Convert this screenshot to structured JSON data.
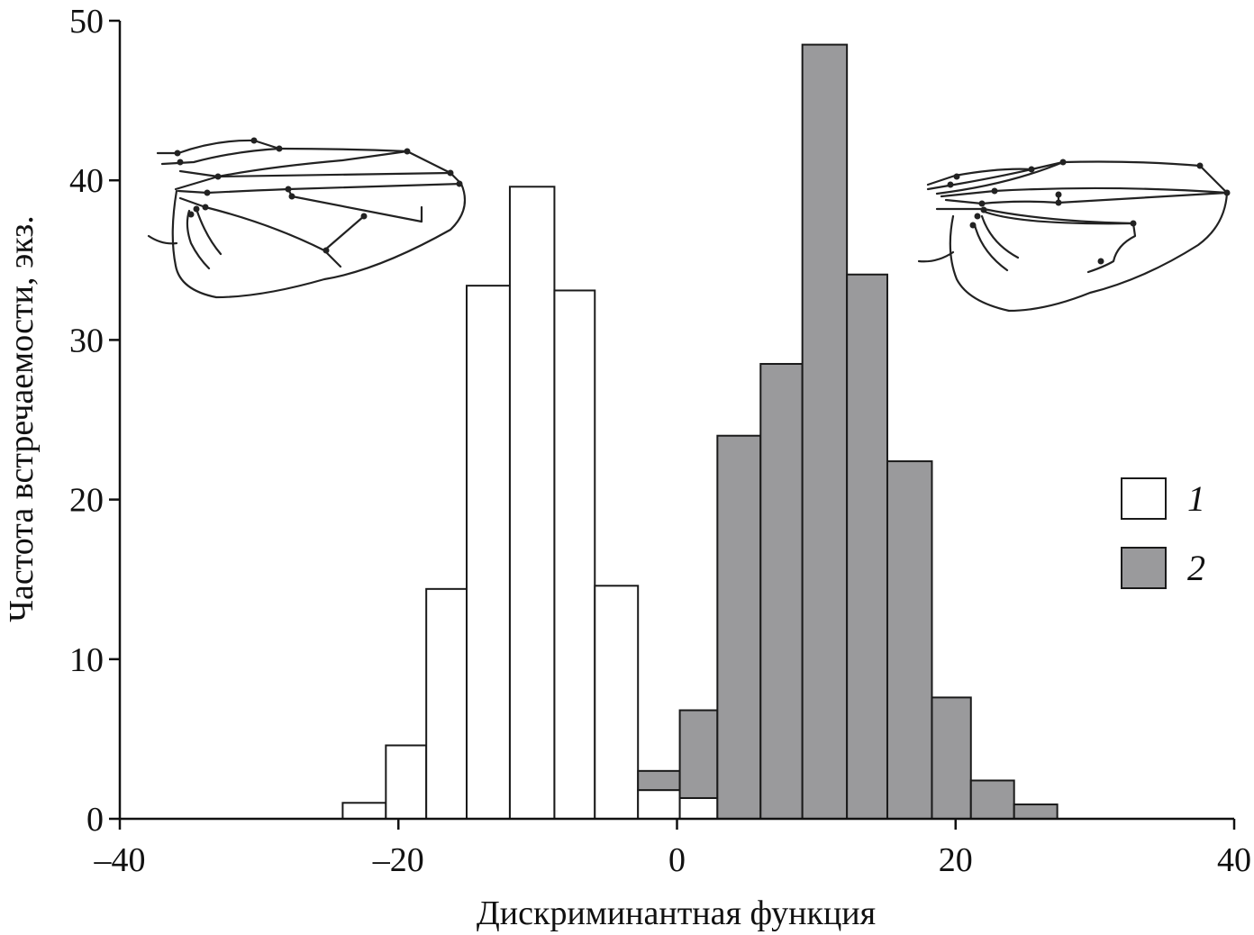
{
  "chart_data": {
    "type": "bar",
    "title": "",
    "xlabel": "Дискриминантная функция",
    "ylabel": "Частота встречаемости, экз.",
    "xlim": [
      -40,
      40
    ],
    "ylim": [
      0,
      50
    ],
    "x_ticks": [
      -40,
      -20,
      0,
      20,
      40
    ],
    "x_tick_labels": [
      "–40",
      "–20",
      "0",
      "20",
      "40"
    ],
    "y_ticks": [
      0,
      10,
      20,
      30,
      40,
      50
    ],
    "y_tick_labels": [
      "0",
      "10",
      "20",
      "30",
      "40",
      "50"
    ],
    "grid": false,
    "legend_position": "right",
    "series": [
      {
        "name": "1",
        "color": "#ffffff",
        "bins": [
          {
            "x0": -24.0,
            "x1": -20.9,
            "value": 1
          },
          {
            "x0": -20.9,
            "x1": -18.0,
            "value": 4.6
          },
          {
            "x0": -18.0,
            "x1": -15.1,
            "value": 14.4
          },
          {
            "x0": -15.1,
            "x1": -12.0,
            "value": 33.4
          },
          {
            "x0": -12.0,
            "x1": -8.8,
            "value": 39.6
          },
          {
            "x0": -8.8,
            "x1": -5.9,
            "value": 33.1
          },
          {
            "x0": -5.9,
            "x1": -2.8,
            "value": 14.6
          },
          {
            "x0": -2.8,
            "x1": 0.2,
            "value": 1.8
          },
          {
            "x0": 0.2,
            "x1": 2.9,
            "value": 1.3
          }
        ]
      },
      {
        "name": "2",
        "color": "#9a9a9c",
        "bins": [
          {
            "x0": -2.8,
            "x1": 0.2,
            "value": 1.2,
            "stack_on": 1.8
          },
          {
            "x0": 0.2,
            "x1": 2.9,
            "value": 5.5,
            "stack_on": 1.3
          },
          {
            "x0": 2.9,
            "x1": 6.0,
            "value": 24
          },
          {
            "x0": 6.0,
            "x1": 9.0,
            "value": 28.5
          },
          {
            "x0": 9.0,
            "x1": 12.2,
            "value": 48.5
          },
          {
            "x0": 12.2,
            "x1": 15.1,
            "value": 34.1
          },
          {
            "x0": 15.1,
            "x1": 18.3,
            "value": 22.4
          },
          {
            "x0": 18.3,
            "x1": 21.1,
            "value": 7.6
          },
          {
            "x0": 21.1,
            "x1": 24.2,
            "value": 2.4
          },
          {
            "x0": 24.2,
            "x1": 27.3,
            "value": 0.9
          }
        ]
      }
    ],
    "illustrations": [
      "wing-drawing-left",
      "wing-drawing-right"
    ]
  }
}
